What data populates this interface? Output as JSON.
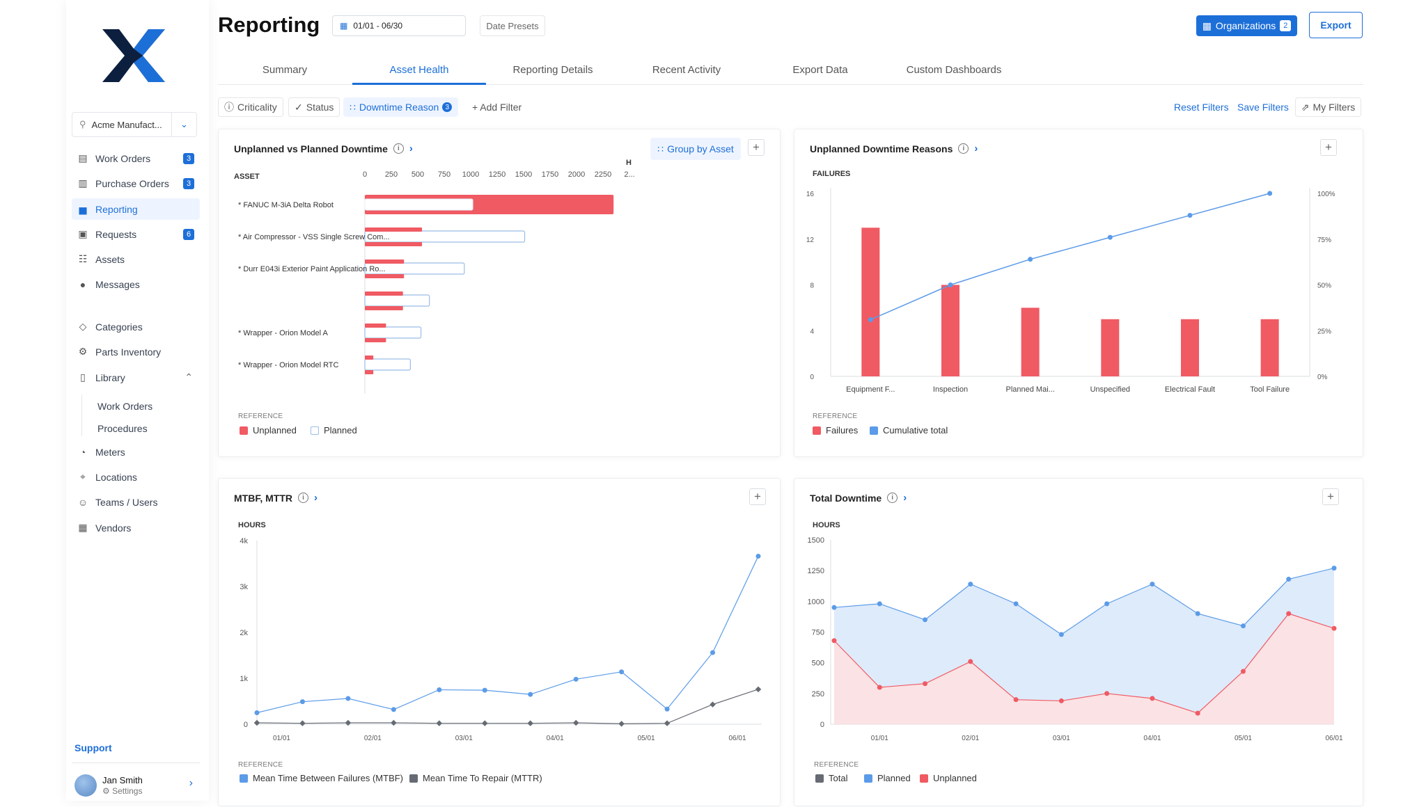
{
  "app": {
    "title": "Reporting",
    "date_range": "01/01 - 06/30",
    "date_presets": "Date Presets",
    "organizations_label": "Organizations",
    "organizations_count": "2",
    "export_label": "Export"
  },
  "sidebar": {
    "org_name": "Acme Manufact...",
    "items": [
      {
        "label": "Work Orders",
        "icon": "work-orders-icon",
        "badge": "3"
      },
      {
        "label": "Purchase Orders",
        "icon": "purchase-orders-icon",
        "badge": "3"
      },
      {
        "label": "Reporting",
        "icon": "reporting-icon",
        "badge": ""
      },
      {
        "label": "Requests",
        "icon": "requests-icon",
        "badge": "6"
      },
      {
        "label": "Assets",
        "icon": "assets-icon",
        "badge": ""
      },
      {
        "label": "Messages",
        "icon": "messages-icon",
        "badge": ""
      },
      {
        "label": "Categories",
        "icon": "tag-icon",
        "badge": ""
      },
      {
        "label": "Parts Inventory",
        "icon": "gear-icon",
        "badge": ""
      },
      {
        "label": "Library",
        "icon": "bookmark-icon",
        "badge": ""
      },
      {
        "label": "Meters",
        "icon": "gauge-icon",
        "badge": ""
      },
      {
        "label": "Locations",
        "icon": "location-icon",
        "badge": ""
      },
      {
        "label": "Teams / Users",
        "icon": "users-icon",
        "badge": ""
      },
      {
        "label": "Vendors",
        "icon": "vendors-icon",
        "badge": ""
      }
    ],
    "library_sub": [
      "Work Orders",
      "Procedures"
    ],
    "support": "Support",
    "user": {
      "name": "Jan Smith",
      "settings": "Settings"
    }
  },
  "tabs": [
    "Summary",
    "Asset Health",
    "Reporting Details",
    "Recent Activity",
    "Export Data",
    "Custom Dashboards"
  ],
  "filters": {
    "criticality": "Criticality",
    "status": "Status",
    "downtime_reason": "Downtime Reason",
    "downtime_count": "3",
    "add_filter": "Add Filter",
    "reset": "Reset Filters",
    "save": "Save Filters",
    "my_filters": "My Filters"
  },
  "cards": {
    "downtime": {
      "title": "Unplanned vs Planned Downtime",
      "group_by": "Group by Asset",
      "reference": "REFERENCE",
      "legend": [
        "Unplanned",
        "Planned"
      ]
    },
    "reasons": {
      "title": "Unplanned Downtime Reasons",
      "reference": "REFERENCE",
      "legend": [
        "Failures",
        "Cumulative total"
      ]
    },
    "mtbf": {
      "title": "MTBF, MTTR",
      "reference": "REFERENCE",
      "legend": [
        "Mean Time Between Failures (MTBF)",
        "Mean Time To Repair (MTTR)"
      ]
    },
    "total": {
      "title": "Total Downtime",
      "reference": "REFERENCE",
      "legend": [
        "Total",
        "Planned",
        "Unplanned"
      ]
    }
  },
  "colors": {
    "accent": "#1d6fd8",
    "unplanned": "#f05a63",
    "planned": "#5b9be8",
    "gray": "#666b73"
  },
  "chart_data": [
    {
      "type": "bar",
      "orientation": "horizontal",
      "title": "Unplanned vs Planned Downtime",
      "ylabel": "ASSET",
      "xlabel": "H",
      "x_ticks": [
        "0",
        "250",
        "500",
        "750",
        "1000",
        "1250",
        "1500",
        "1750",
        "2000",
        "2250",
        "2..."
      ],
      "xlim": [
        0,
        2500
      ],
      "asset_labels": [
        "* FANUC M-3iA Delta Robot",
        "* Air Compressor - VSS Single Screw Com...",
        "* Durr E043i Exterior Paint Application Ro...",
        "",
        "* Wrapper - Orion Model A",
        "* Wrapper - Orion Model RTC"
      ],
      "series": [
        {
          "name": "Unplanned",
          "values": [
            2350,
            540,
            370,
            360,
            200,
            80
          ]
        },
        {
          "name": "Planned",
          "values": [
            1020,
            1510,
            940,
            610,
            530,
            430
          ]
        }
      ]
    },
    {
      "type": "bar",
      "title": "Unplanned Downtime Reasons",
      "ylabel": "FAILURES",
      "categories": [
        "Equipment F...",
        "Inspection",
        "Planned Mai...",
        "Unspecified",
        "Electrical Fault",
        "Tool Failure"
      ],
      "y_ticks": [
        "0",
        "4",
        "8",
        "12",
        "16"
      ],
      "y2_ticks": [
        "0%",
        "25%",
        "50%",
        "75%",
        "100%"
      ],
      "ylim": [
        0,
        16
      ],
      "series": [
        {
          "name": "Failures",
          "values": [
            13,
            8,
            6,
            5,
            5,
            5
          ]
        },
        {
          "name": "Cumulative total",
          "values": [
            31,
            50,
            64,
            76,
            88,
            100
          ]
        }
      ]
    },
    {
      "type": "line",
      "title": "MTBF, MTTR",
      "ylabel": "HOURS",
      "y_ticks": [
        "0",
        "1k",
        "2k",
        "3k",
        "4k"
      ],
      "ylim": [
        0,
        4000
      ],
      "x_labels": [
        "01/01",
        "02/01",
        "03/01",
        "04/01",
        "05/01",
        "06/01"
      ],
      "series": [
        {
          "name": "Mean Time Between Failures (MTBF)",
          "values": [
            250,
            490,
            560,
            320,
            750,
            740,
            650,
            980,
            1140,
            330,
            1560,
            3660
          ]
        },
        {
          "name": "Mean Time To Repair (MTTR)",
          "values": [
            30,
            20,
            30,
            30,
            20,
            20,
            20,
            30,
            10,
            20,
            430,
            760
          ]
        }
      ]
    },
    {
      "type": "area",
      "title": "Total Downtime",
      "ylabel": "HOURS",
      "y_ticks": [
        "0",
        "250",
        "500",
        "750",
        "1000",
        "1250",
        "1500"
      ],
      "ylim": [
        0,
        1500
      ],
      "x_labels": [
        "01/01",
        "02/01",
        "03/01",
        "04/01",
        "05/01",
        "06/01"
      ],
      "series": [
        {
          "name": "Planned",
          "values": [
            950,
            980,
            850,
            1140,
            980,
            730,
            980,
            1140,
            900,
            800,
            1180,
            1270
          ]
        },
        {
          "name": "Unplanned",
          "values": [
            680,
            300,
            330,
            510,
            200,
            190,
            250,
            210,
            90,
            430,
            900,
            780
          ]
        }
      ]
    }
  ]
}
